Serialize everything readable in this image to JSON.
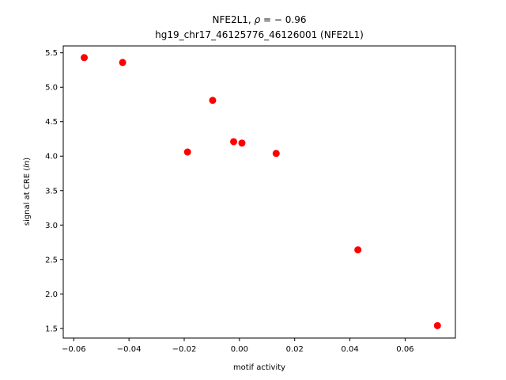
{
  "chart_data": {
    "type": "scatter",
    "title_line1_prefix": "NFE2L1, ",
    "title_rho_symbol": "ρ",
    "title_rho_value": " = − 0.96",
    "title_line2": "hg19_chr17_46125776_46126001 (NFE2L1)",
    "xlabel": "motif activity",
    "ylabel_prefix": "signal at CRE (",
    "ylabel_italic": "ln",
    "ylabel_suffix": ")",
    "xlim": [
      -0.0638,
      0.0782
    ],
    "ylim": [
      1.36,
      5.6
    ],
    "xticks": [
      -0.06,
      -0.04,
      -0.02,
      0.0,
      0.02,
      0.04,
      0.06
    ],
    "xtick_labels": [
      "−0.06",
      "−0.04",
      "−0.02",
      "0.00",
      "0.02",
      "0.04",
      "0.06"
    ],
    "yticks": [
      1.5,
      2.0,
      2.5,
      3.0,
      3.5,
      4.0,
      4.5,
      5.0,
      5.5
    ],
    "ytick_labels": [
      "1.5",
      "2.0",
      "2.5",
      "3.0",
      "3.5",
      "4.0",
      "4.5",
      "5.0",
      "5.5"
    ],
    "marker_color": "#ff0000",
    "points": [
      {
        "x": -0.0562,
        "y": 5.43
      },
      {
        "x": -0.0423,
        "y": 5.36
      },
      {
        "x": -0.0188,
        "y": 4.06
      },
      {
        "x": -0.0097,
        "y": 4.81
      },
      {
        "x": -0.0021,
        "y": 4.21
      },
      {
        "x": 0.0009,
        "y": 4.19
      },
      {
        "x": 0.0133,
        "y": 4.04
      },
      {
        "x": 0.0429,
        "y": 2.64
      },
      {
        "x": 0.0717,
        "y": 1.54
      }
    ]
  }
}
